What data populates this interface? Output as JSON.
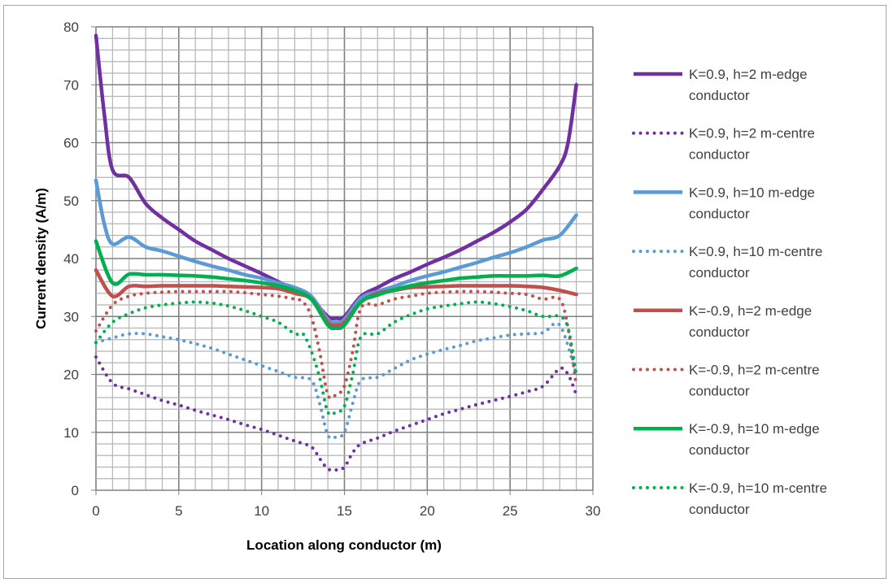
{
  "chart_data": {
    "type": "line",
    "xlabel": "Location along conductor (m)",
    "ylabel": "Current density (A/m)",
    "xlim": [
      0,
      30
    ],
    "ylim": [
      0,
      80
    ],
    "x_ticks": [
      0,
      5,
      10,
      15,
      20,
      25,
      30
    ],
    "y_ticks": [
      0,
      10,
      20,
      30,
      40,
      50,
      60,
      70,
      80
    ],
    "grid": {
      "major": true,
      "minor": true,
      "x_minor_step": 1,
      "y_minor_step": 2
    },
    "legend_position": "right",
    "series": [
      {
        "name_line1": "K=0.9, h=2 m-edge",
        "name_line2": "conductor",
        "color": "#7030A0",
        "style": "solid",
        "points": [
          [
            0,
            78.5
          ],
          [
            0.5,
            65
          ],
          [
            1,
            55.3
          ],
          [
            2,
            54
          ],
          [
            3,
            49.5
          ],
          [
            4,
            47
          ],
          [
            5,
            45
          ],
          [
            6,
            43
          ],
          [
            7,
            41.5
          ],
          [
            8,
            40
          ],
          [
            9,
            38.7
          ],
          [
            10,
            37.4
          ],
          [
            11,
            36
          ],
          [
            12,
            34.6
          ],
          [
            13,
            33
          ],
          [
            14,
            30
          ],
          [
            14.5,
            29.7
          ],
          [
            15,
            30
          ],
          [
            16,
            33.5
          ],
          [
            17,
            35
          ],
          [
            18,
            36.5
          ],
          [
            19,
            37.7
          ],
          [
            20,
            39
          ],
          [
            21,
            40.2
          ],
          [
            22,
            41.5
          ],
          [
            23,
            43
          ],
          [
            24,
            44.5
          ],
          [
            25,
            46.3
          ],
          [
            26,
            48.5
          ],
          [
            27,
            52
          ],
          [
            28,
            56
          ],
          [
            28.5,
            60
          ],
          [
            29,
            70
          ]
        ]
      },
      {
        "name_line1": "K=0.9, h=2 m-centre",
        "name_line2": "conductor",
        "color": "#7030A0",
        "style": "dotted",
        "points": [
          [
            0,
            23
          ],
          [
            1,
            18.5
          ],
          [
            2,
            17.5
          ],
          [
            3,
            16.5
          ],
          [
            4,
            15.5
          ],
          [
            5,
            14.7
          ],
          [
            6,
            13.8
          ],
          [
            7,
            13
          ],
          [
            8,
            12.2
          ],
          [
            9,
            11.3
          ],
          [
            10,
            10.5
          ],
          [
            11,
            9.5
          ],
          [
            12,
            8.5
          ],
          [
            13,
            7.5
          ],
          [
            13.5,
            5.5
          ],
          [
            14,
            3.7
          ],
          [
            14.5,
            3.5
          ],
          [
            15,
            4
          ],
          [
            15.5,
            6.5
          ],
          [
            16,
            8
          ],
          [
            17,
            9
          ],
          [
            18,
            10.2
          ],
          [
            19,
            11.2
          ],
          [
            20,
            12.2
          ],
          [
            21,
            13.2
          ],
          [
            22,
            14
          ],
          [
            23,
            14.8
          ],
          [
            24,
            15.5
          ],
          [
            25,
            16.2
          ],
          [
            26,
            17
          ],
          [
            27,
            18
          ],
          [
            28,
            21
          ],
          [
            28.5,
            20
          ],
          [
            29,
            16.5
          ]
        ]
      },
      {
        "name_line1": "K=0.9, h=10 m-edge",
        "name_line2": "conductor",
        "color": "#5B9BD5",
        "style": "solid",
        "points": [
          [
            0,
            53.5
          ],
          [
            0.5,
            46
          ],
          [
            1,
            42.5
          ],
          [
            2,
            43.7
          ],
          [
            3,
            42
          ],
          [
            4,
            41.3
          ],
          [
            5,
            40.4
          ],
          [
            6,
            39.5
          ],
          [
            7,
            38.7
          ],
          [
            8,
            38
          ],
          [
            9,
            37.2
          ],
          [
            10,
            36.6
          ],
          [
            11,
            35.8
          ],
          [
            12,
            35
          ],
          [
            13,
            33.5
          ],
          [
            14,
            29.5
          ],
          [
            14.5,
            29
          ],
          [
            15,
            29.5
          ],
          [
            16,
            33.2
          ],
          [
            17,
            34.3
          ],
          [
            18,
            35.2
          ],
          [
            19,
            36.2
          ],
          [
            20,
            37
          ],
          [
            21,
            37.7
          ],
          [
            22,
            38.5
          ],
          [
            23,
            39.3
          ],
          [
            24,
            40.2
          ],
          [
            25,
            41
          ],
          [
            26,
            42
          ],
          [
            27,
            43.2
          ],
          [
            28,
            44
          ],
          [
            29,
            47.5
          ]
        ]
      },
      {
        "name_line1": "K=0.9, h=10 m-centre",
        "name_line2": "conductor",
        "color": "#5B9BD5",
        "style": "dotted",
        "points": [
          [
            0,
            25.5
          ],
          [
            1,
            26.3
          ],
          [
            2,
            27
          ],
          [
            3,
            27
          ],
          [
            4,
            26.5
          ],
          [
            5,
            26
          ],
          [
            6,
            25.3
          ],
          [
            7,
            24.5
          ],
          [
            8,
            23.5
          ],
          [
            9,
            22.5
          ],
          [
            10,
            21.5
          ],
          [
            11,
            20.5
          ],
          [
            12,
            19.5
          ],
          [
            13,
            19
          ],
          [
            13.5,
            15
          ],
          [
            14,
            9.5
          ],
          [
            14.5,
            9.2
          ],
          [
            15,
            10
          ],
          [
            15.5,
            15
          ],
          [
            16,
            19
          ],
          [
            17,
            19.5
          ],
          [
            18,
            21
          ],
          [
            19,
            22.5
          ],
          [
            20,
            23.5
          ],
          [
            21,
            24.3
          ],
          [
            22,
            25
          ],
          [
            23,
            25.8
          ],
          [
            24,
            26.3
          ],
          [
            25,
            26.8
          ],
          [
            26,
            27
          ],
          [
            27,
            27.2
          ],
          [
            28,
            28.5
          ],
          [
            29,
            20
          ]
        ]
      },
      {
        "name_line1": "K=-0.9, h=2 m-edge",
        "name_line2": "conductor",
        "color": "#C0504D",
        "style": "solid",
        "points": [
          [
            0,
            38
          ],
          [
            1,
            33.5
          ],
          [
            2,
            35.2
          ],
          [
            3,
            35.2
          ],
          [
            4,
            35.3
          ],
          [
            5,
            35.3
          ],
          [
            6,
            35.3
          ],
          [
            7,
            35.3
          ],
          [
            8,
            35.2
          ],
          [
            9,
            35.1
          ],
          [
            10,
            35
          ],
          [
            11,
            34.8
          ],
          [
            12,
            34
          ],
          [
            13,
            33
          ],
          [
            14,
            29
          ],
          [
            14.5,
            28.5
          ],
          [
            15,
            29
          ],
          [
            16,
            32.5
          ],
          [
            17,
            34
          ],
          [
            18,
            34.5
          ],
          [
            19,
            35
          ],
          [
            20,
            35.1
          ],
          [
            21,
            35.2
          ],
          [
            22,
            35.3
          ],
          [
            23,
            35.3
          ],
          [
            24,
            35.3
          ],
          [
            25,
            35.3
          ],
          [
            26,
            35.2
          ],
          [
            27,
            35
          ],
          [
            28,
            34.5
          ],
          [
            29,
            33.8
          ]
        ]
      },
      {
        "name_line1": "K=-0.9, h=2 m-centre",
        "name_line2": "conductor",
        "color": "#C0504D",
        "style": "dotted",
        "points": [
          [
            0,
            27.5
          ],
          [
            1,
            32
          ],
          [
            2,
            33.5
          ],
          [
            3,
            34
          ],
          [
            4,
            34.2
          ],
          [
            5,
            34.3
          ],
          [
            6,
            34.3
          ],
          [
            7,
            34.3
          ],
          [
            8,
            34.3
          ],
          [
            9,
            34.1
          ],
          [
            10,
            33.8
          ],
          [
            11,
            33.5
          ],
          [
            12,
            33
          ],
          [
            12.5,
            32.5
          ],
          [
            13,
            30
          ],
          [
            13.5,
            24
          ],
          [
            14,
            16.5
          ],
          [
            14.5,
            16.5
          ],
          [
            15,
            18
          ],
          [
            15.5,
            24
          ],
          [
            16,
            31.5
          ],
          [
            17,
            32
          ],
          [
            18,
            33
          ],
          [
            19,
            33.5
          ],
          [
            20,
            34
          ],
          [
            21,
            34.2
          ],
          [
            22,
            34.3
          ],
          [
            23,
            34.3
          ],
          [
            24,
            34.2
          ],
          [
            25,
            34
          ],
          [
            26,
            33.8
          ],
          [
            27,
            33
          ],
          [
            28,
            33
          ],
          [
            28.5,
            28
          ],
          [
            29,
            18
          ]
        ]
      },
      {
        "name_line1": "K=-0.9, h=10 m-edge",
        "name_line2": "conductor",
        "color": "#00B050",
        "style": "solid",
        "points": [
          [
            0,
            43
          ],
          [
            1,
            35.8
          ],
          [
            2,
            37.3
          ],
          [
            3,
            37.2
          ],
          [
            4,
            37.2
          ],
          [
            5,
            37.1
          ],
          [
            6,
            37
          ],
          [
            7,
            36.8
          ],
          [
            8,
            36.5
          ],
          [
            9,
            36.2
          ],
          [
            10,
            35.8
          ],
          [
            11,
            35.3
          ],
          [
            12,
            34.5
          ],
          [
            13,
            33
          ],
          [
            14,
            28.5
          ],
          [
            14.5,
            28
          ],
          [
            15,
            28.5
          ],
          [
            16,
            32.5
          ],
          [
            17,
            33.7
          ],
          [
            18,
            34.6
          ],
          [
            19,
            35.3
          ],
          [
            20,
            35.8
          ],
          [
            21,
            36.2
          ],
          [
            22,
            36.6
          ],
          [
            23,
            36.8
          ],
          [
            24,
            37
          ],
          [
            25,
            37
          ],
          [
            26,
            37
          ],
          [
            27,
            37.1
          ],
          [
            28,
            37
          ],
          [
            29,
            38.3
          ]
        ]
      },
      {
        "name_line1": "K=-0.9, h=10 m-centre",
        "name_line2": "conductor",
        "color": "#00B050",
        "style": "dotted",
        "points": [
          [
            0,
            25.5
          ],
          [
            1,
            29
          ],
          [
            2,
            30.5
          ],
          [
            3,
            31.5
          ],
          [
            4,
            32
          ],
          [
            5,
            32.3
          ],
          [
            6,
            32.5
          ],
          [
            7,
            32.3
          ],
          [
            8,
            31.8
          ],
          [
            9,
            31
          ],
          [
            10,
            30
          ],
          [
            11,
            29
          ],
          [
            12,
            27
          ],
          [
            12.5,
            27
          ],
          [
            13,
            24
          ],
          [
            13.5,
            19.5
          ],
          [
            14,
            13.5
          ],
          [
            14.5,
            13.5
          ],
          [
            15,
            14.5
          ],
          [
            15.5,
            20
          ],
          [
            16,
            26.5
          ],
          [
            17,
            27
          ],
          [
            18,
            29
          ],
          [
            19,
            30.3
          ],
          [
            20,
            31.3
          ],
          [
            21,
            31.8
          ],
          [
            22,
            32.2
          ],
          [
            23,
            32.5
          ],
          [
            24,
            32.2
          ],
          [
            25,
            31.7
          ],
          [
            26,
            31
          ],
          [
            27,
            30
          ],
          [
            28,
            30
          ],
          [
            28.5,
            28
          ],
          [
            29,
            20
          ]
        ]
      }
    ]
  }
}
